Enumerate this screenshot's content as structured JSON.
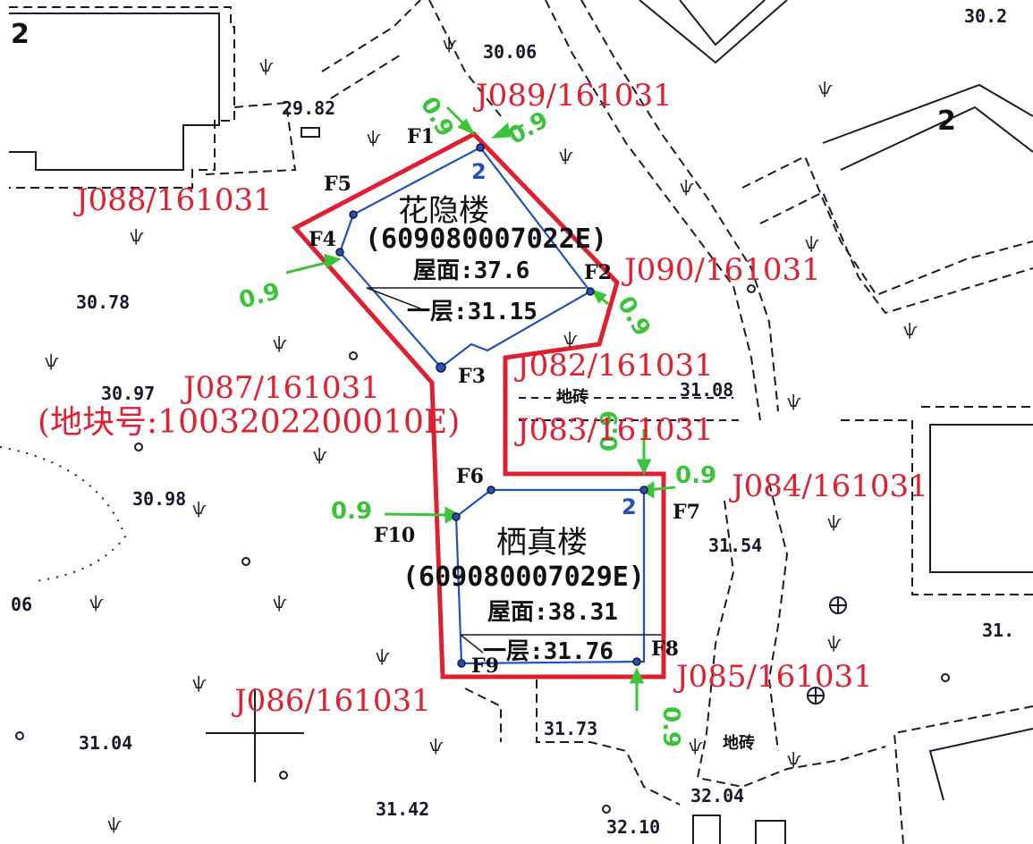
{
  "colors": {
    "boundary": "#e02030",
    "footprint": "#2050c0",
    "offset": "#3ac43a",
    "basemap": "#1a1a2a"
  },
  "floors_left": "2",
  "floors_right": "2",
  "parcel_label": "(地块号:1003202200010E)",
  "buildings": [
    {
      "name": "花隐楼",
      "code": "(609080007022E)",
      "roof": "屋面:37.6",
      "ground": "一层:31.15",
      "storeys": "2"
    },
    {
      "name": "栖真楼",
      "code": "(609080007029E)",
      "roof": "屋面:38.31",
      "ground": "一层:31.76",
      "storeys": "2"
    }
  ],
  "boundary_points": [
    "J089/161031",
    "J088/161031",
    "J090/161031",
    "J082/161031",
    "J087/161031",
    "J083/161031",
    "J084/161031",
    "J085/161031",
    "J086/161031"
  ],
  "feature_points": [
    "F1",
    "F2",
    "F3",
    "F4",
    "F5",
    "F6",
    "F7",
    "F8",
    "F9",
    "F10"
  ],
  "offsets": [
    "0.9",
    "0.9",
    "0.9",
    "0.9",
    "0.9",
    "0.9",
    "0.9",
    "0.9"
  ],
  "elevations": [
    "30.06",
    "30.2",
    "29.82",
    "30.78",
    "30.97",
    "31.08",
    "30.98",
    "31.54",
    "06",
    "31.",
    "31.04",
    "31.73",
    "31.42",
    "32.04",
    "32.10"
  ],
  "paving": [
    "地砖",
    "地砖"
  ],
  "grass_symbol": "ѱ"
}
